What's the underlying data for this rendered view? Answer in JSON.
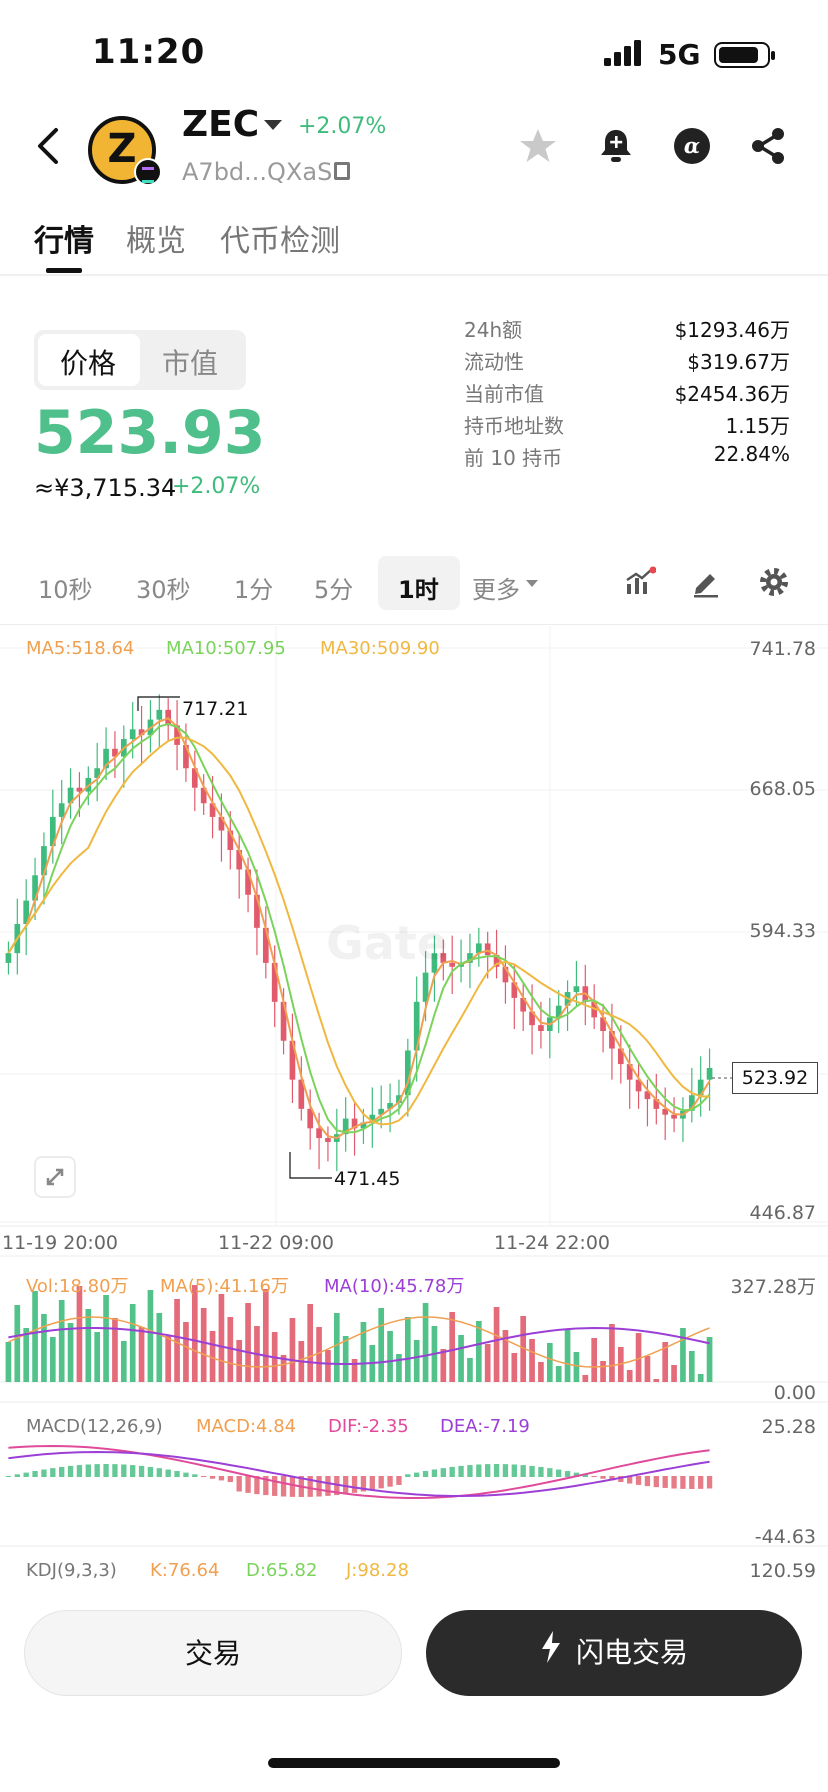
{
  "status_bar": {
    "time": "11:20",
    "network": "5G"
  },
  "header": {
    "symbol": "ZEC",
    "change": "+2.07%",
    "address": "A7bd...QXaS",
    "icons": [
      "back-icon",
      "star-icon",
      "bell-plus-icon",
      "alpha-icon",
      "share-icon"
    ]
  },
  "tabs": [
    "行情",
    "概览",
    "代币检测"
  ],
  "price_panel": {
    "toggle": [
      "价格",
      "市值"
    ],
    "price": "523.93",
    "fiat": "≈¥3,715.34",
    "change": "+2.07%"
  },
  "stats": [
    {
      "label": "24h额",
      "value": "$1293.46万"
    },
    {
      "label": "流动性",
      "value": "$319.67万"
    },
    {
      "label": "当前市值",
      "value": "$2454.36万"
    },
    {
      "label": "持币地址数",
      "value": "1.15万"
    },
    {
      "label": "前 10 持币",
      "value": "22.84%"
    }
  ],
  "intervals": [
    "10秒",
    "30秒",
    "1分",
    "5分",
    "1时",
    "更多"
  ],
  "active_interval": "1时",
  "chart_data": {
    "type": "candlestick",
    "ma_legend": {
      "ma5": "MA5:518.64",
      "ma10": "MA10:507.95",
      "ma30": "MA30:509.90"
    },
    "y_axis": [
      "741.78",
      "668.05",
      "594.33",
      "446.87"
    ],
    "x_axis": [
      "11-19 20:00",
      "11-22 09:00",
      "11-24 22:00"
    ],
    "high_label": "717.21",
    "low_label": "471.45",
    "last_price": "523.92",
    "ylim": [
      446.87,
      741.78
    ],
    "close_series": [
      585,
      600,
      612,
      625,
      640,
      655,
      662,
      670,
      668,
      675,
      680,
      690,
      686,
      695,
      700,
      697,
      705,
      710,
      702,
      692,
      680,
      670,
      662,
      655,
      648,
      638,
      628,
      615,
      598,
      580,
      560,
      540,
      520,
      505,
      495,
      490,
      488,
      492,
      500,
      495,
      498,
      502,
      505,
      508,
      512,
      535,
      560,
      575,
      585,
      580,
      578,
      580,
      585,
      590,
      584,
      578,
      570,
      562,
      555,
      548,
      545,
      552,
      558,
      565,
      568,
      560,
      552,
      545,
      536,
      528,
      520,
      514,
      510,
      505,
      502,
      500,
      504,
      512,
      520,
      526
    ],
    "volume": {
      "legend": "Vol:18.80万",
      "ma5": "MA(5):41.16万",
      "ma10": "MA(10):45.78万",
      "max": "327.28万",
      "min": "0.00"
    },
    "macd": {
      "legend": "MACD(12,26,9)",
      "macd": "MACD:4.84",
      "dif": "DIF:-2.35",
      "dea": "DEA:-7.19",
      "max": "25.28",
      "min": "-44.63"
    },
    "kdj": {
      "legend": "KDJ(9,3,3)",
      "k": "K:76.64",
      "d": "D:65.82",
      "j": "J:98.28",
      "max": "120.59"
    }
  },
  "buttons": {
    "trade": "交易",
    "flash": "闪电交易"
  },
  "colors": {
    "up": "#3fbb7d",
    "down": "#e15b6c",
    "ma5": "#f0a050",
    "ma10": "#7ad35a",
    "ma30": "#f0b840",
    "macd_dif": "#e04a9a",
    "macd_dea": "#9b3fd6"
  },
  "watermark": "Gate"
}
